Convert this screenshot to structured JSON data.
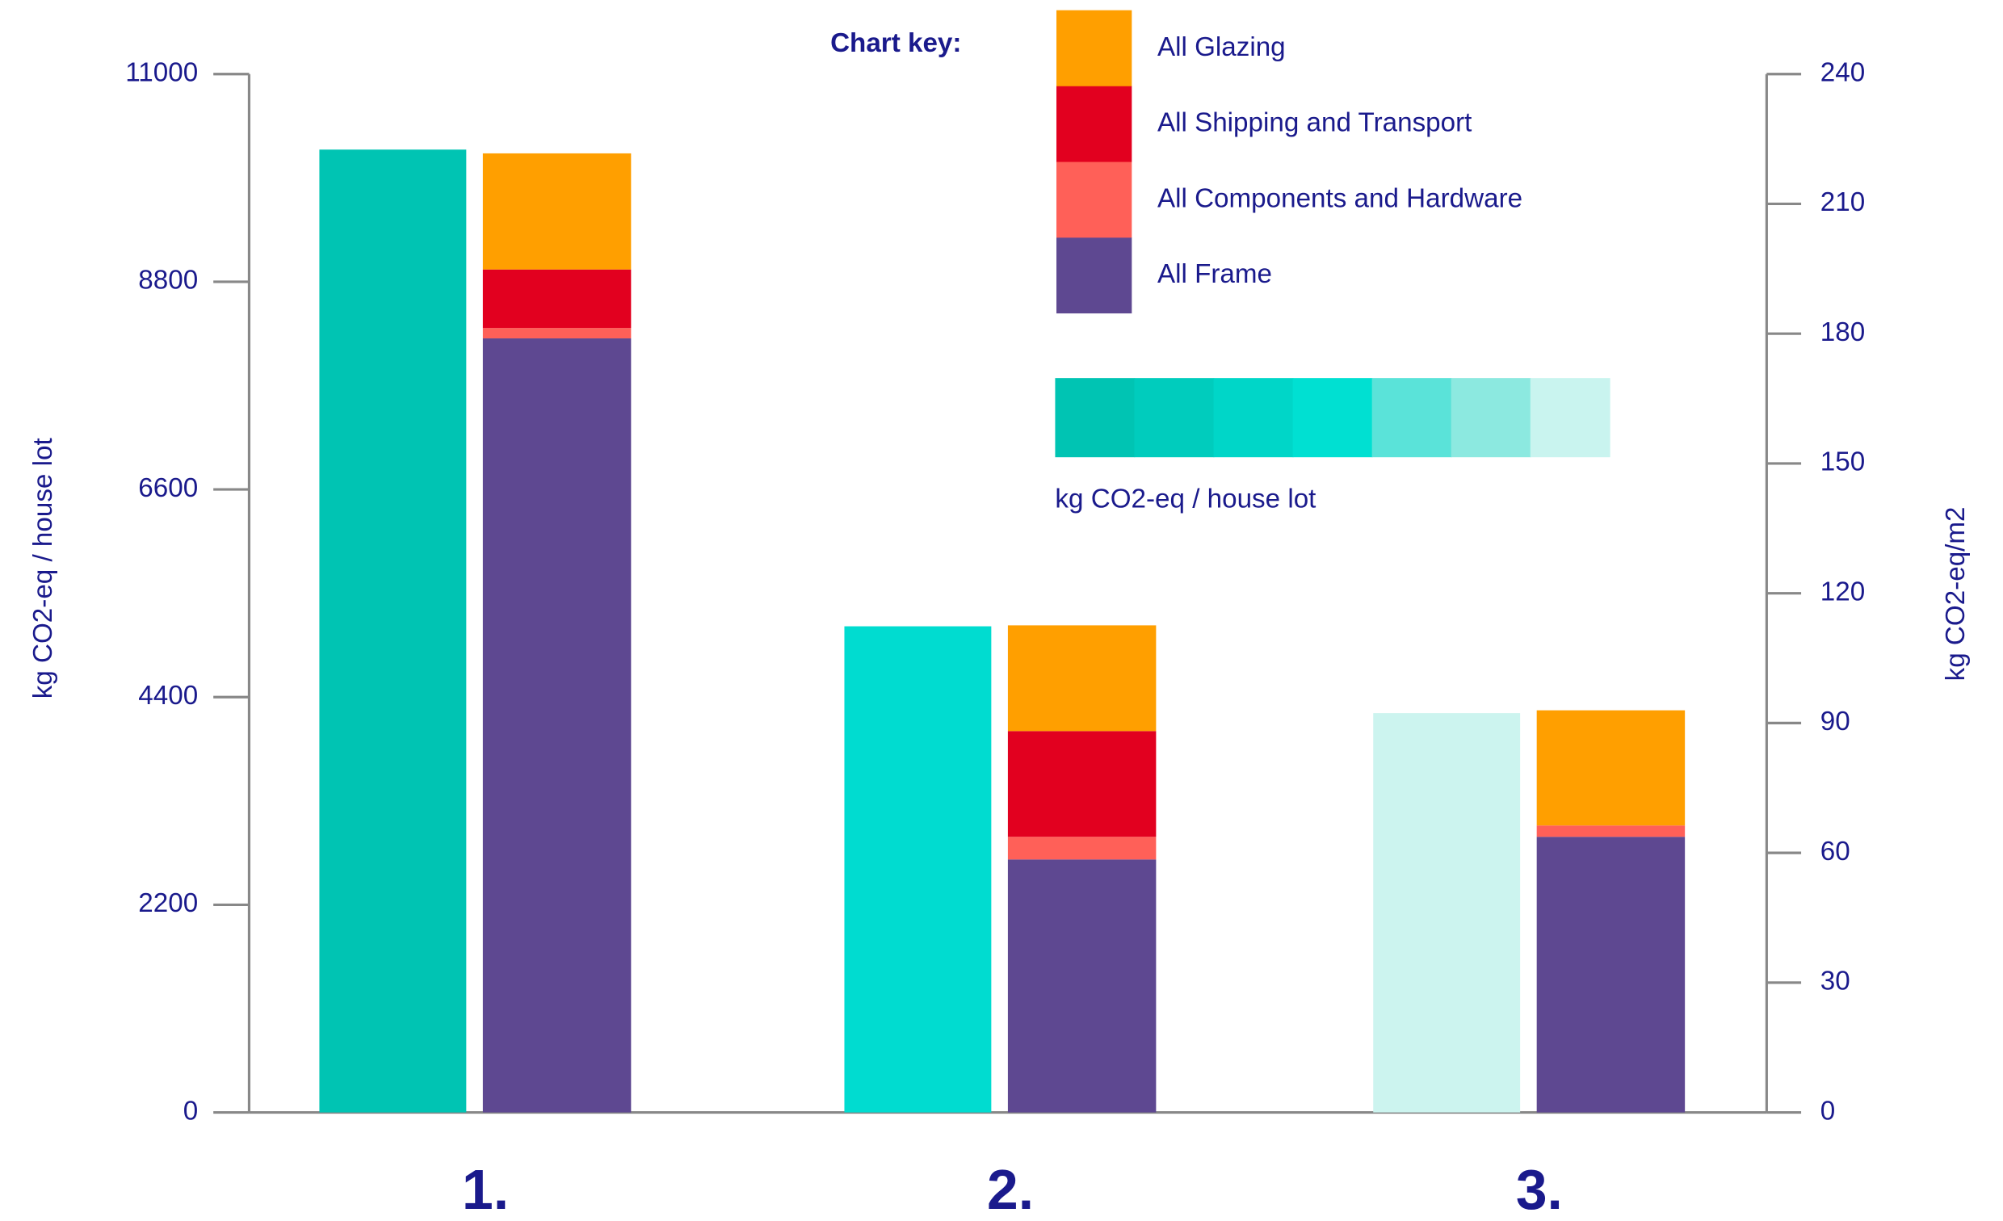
{
  "chart_data": {
    "type": "bar",
    "legend_title": "Chart key:",
    "y_label": "kg CO2-eq / house lot",
    "y2_label": "kg CO2-eq/m2",
    "categories": [
      "1.",
      "2.",
      "3."
    ],
    "ylim": [
      0,
      11000
    ],
    "yticks": [
      0,
      2200,
      4400,
      6600,
      8800,
      11000
    ],
    "y2lim": [
      0,
      240
    ],
    "y2ticks": [
      0,
      30,
      60,
      90,
      120,
      150,
      180,
      210,
      240
    ],
    "total_series": {
      "name": "kg CO2-eq / house lot",
      "colors": [
        "#00c4b3",
        "#00dcd0",
        "#ccf4ef"
      ],
      "values": [
        10200,
        5150,
        4230
      ]
    },
    "legend_gradient": [
      "#00c4b3",
      "#00ccbd",
      "#00d6c8",
      "#00e0d2",
      "#5ae3d9",
      "#8ce9e0",
      "#c9f4ef"
    ],
    "series": [
      {
        "name": "All Frame",
        "color": "#5e4891",
        "values": [
          8200,
          2680,
          2920
        ]
      },
      {
        "name": "All Components and Hardware",
        "color": "#ff6058",
        "values": [
          110,
          240,
          120
        ]
      },
      {
        "name": "All Shipping and Transport",
        "color": "#e2001f",
        "values": [
          620,
          1120,
          0
        ]
      },
      {
        "name": "All Glazing",
        "color": "#ff9f00",
        "values": [
          1230,
          1120,
          1220
        ]
      }
    ]
  }
}
